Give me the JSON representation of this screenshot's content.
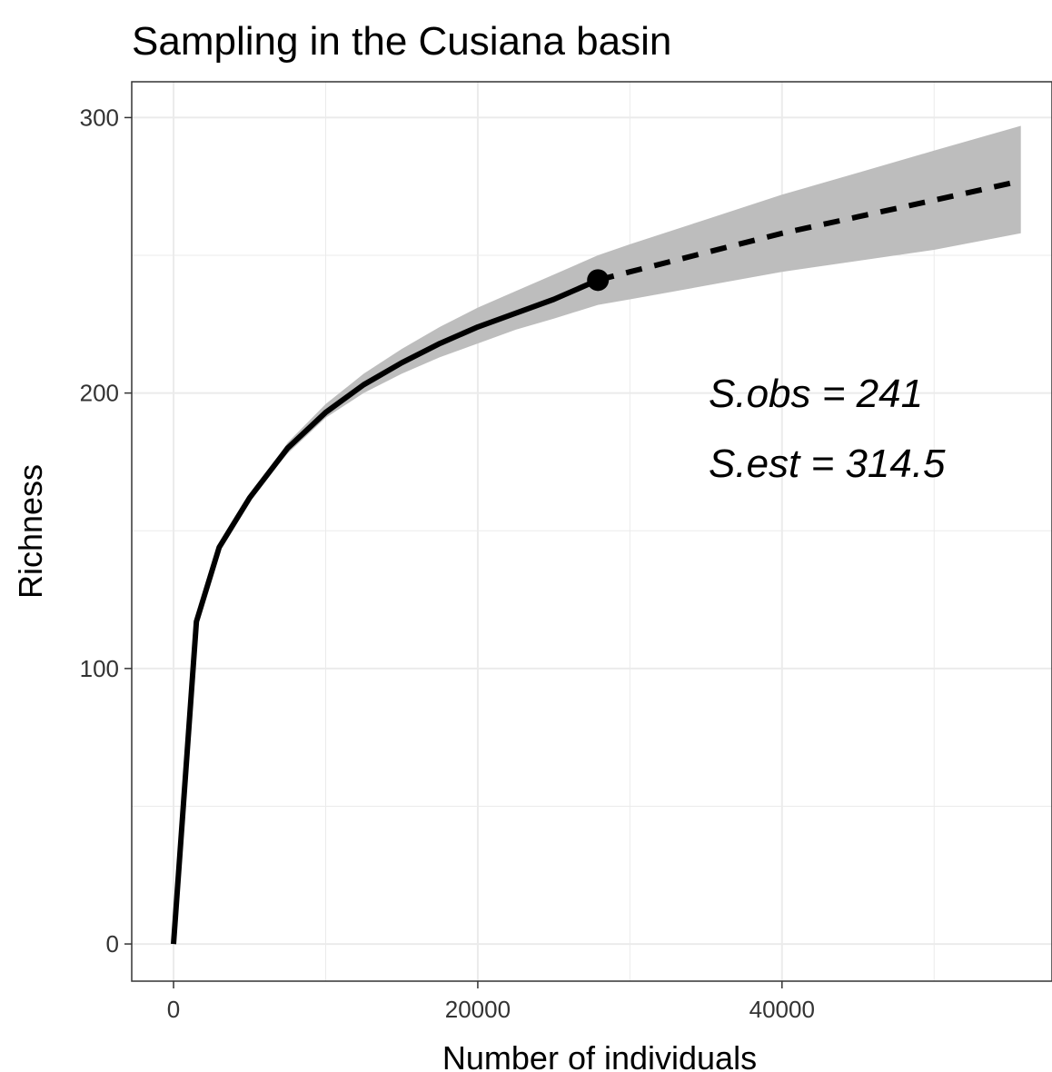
{
  "chart_data": {
    "type": "line",
    "title": "Sampling in the Cusiana basin",
    "xlabel": "Number of individuals",
    "ylabel": "Richness",
    "xlim": [
      -2750,
      57750
    ],
    "ylim": [
      -13.5,
      313
    ],
    "xticks": [
      0,
      20000,
      40000
    ],
    "xtick_labels": [
      "0",
      "20000",
      "40000"
    ],
    "yticks": [
      0,
      100,
      200,
      300
    ],
    "ytick_labels": [
      "0",
      "100",
      "200",
      "300"
    ],
    "x_minor_grid": [
      10000,
      30000,
      50000
    ],
    "y_minor_grid": [
      50,
      150,
      250
    ],
    "grid": true,
    "series": [
      {
        "style": "solid",
        "x": [
          0,
          1500,
          3000,
          5000,
          7500,
          10000,
          12500,
          15000,
          17500,
          20000,
          22500,
          25000,
          27900
        ],
        "y": [
          0,
          117,
          144,
          162,
          180,
          193,
          203,
          211,
          218,
          224,
          229,
          234,
          241
        ]
      },
      {
        "style": "dashed",
        "x": [
          27900,
          30000,
          35000,
          40000,
          45000,
          50000,
          55700
        ],
        "y": [
          241,
          244,
          251,
          258,
          264,
          270,
          277
        ]
      }
    ],
    "confidence_band": {
      "x": [
        5000,
        7500,
        10000,
        12500,
        15000,
        17500,
        20000,
        22500,
        25000,
        27900,
        30000,
        35000,
        40000,
        45000,
        50000,
        55700
      ],
      "lower": [
        162,
        178,
        191,
        200,
        207,
        213,
        218,
        223,
        227,
        232,
        234,
        239,
        244,
        248,
        252,
        258
      ],
      "upper": [
        162,
        182,
        196,
        207,
        216,
        224,
        231,
        237,
        243,
        250,
        254,
        263,
        272,
        280,
        288,
        297
      ]
    },
    "observed_point": {
      "x": 27900,
      "y": 241
    },
    "annotations": [
      "S.obs = 241",
      "S.est = 314.5"
    ],
    "colors": {
      "line": "#000000",
      "band": "#bdbdbd",
      "grid": "#ebebeb",
      "border": "#333333"
    }
  }
}
